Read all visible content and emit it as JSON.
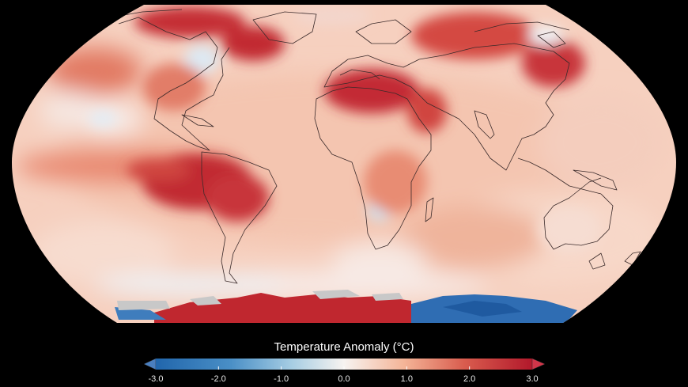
{
  "legend": {
    "title": "Temperature Anomaly (°C)",
    "min": -3.0,
    "max": 3.0,
    "ticks": [
      "-3.0",
      "-2.0",
      "-1.0",
      "0.0",
      "1.0",
      "2.0",
      "3.0"
    ],
    "colors": {
      "cold_end": "#2166ac",
      "cold_mid": "#67a9cf",
      "neutral": "#f7f7f7",
      "warm_mid": "#ef8a62",
      "warm_end": "#b2182b"
    }
  },
  "map": {
    "projection": "robinson",
    "ocean_base_color": "#f6d0bf",
    "coastline_color": "#3a2a2a"
  }
}
